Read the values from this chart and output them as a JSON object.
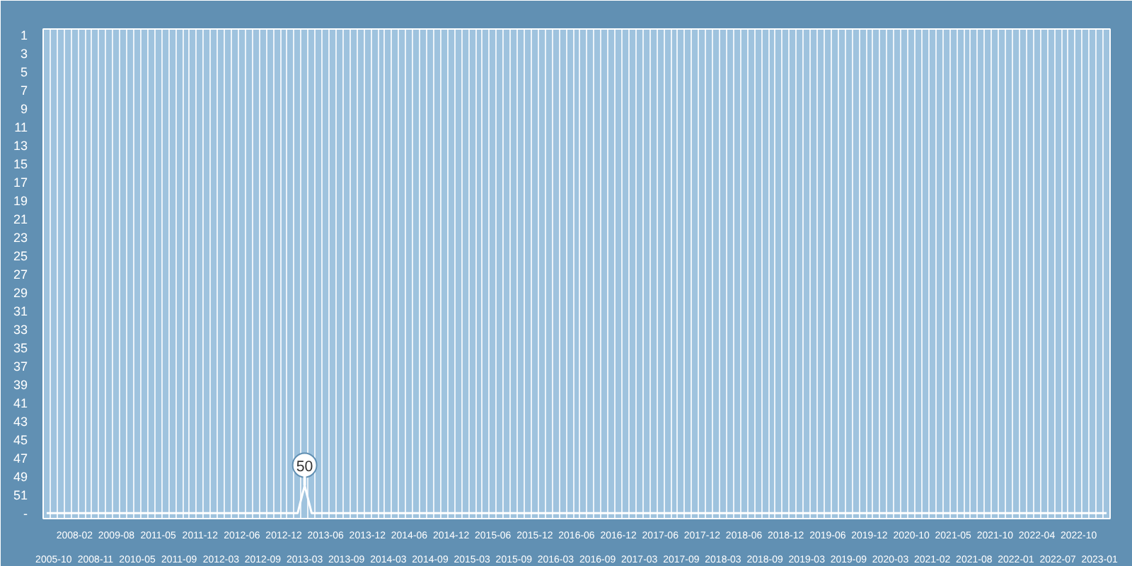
{
  "chart_data": {
    "type": "line",
    "categories": [
      null,
      "2005-10",
      null,
      null,
      "2008-02",
      null,
      null,
      "2008-11",
      null,
      null,
      "2009-08",
      null,
      null,
      "2010-05",
      null,
      null,
      "2011-05",
      null,
      null,
      "2011-09",
      null,
      null,
      "2011-12",
      null,
      null,
      "2012-03",
      null,
      null,
      "2012-06",
      null,
      null,
      "2012-09",
      null,
      null,
      "2012-12",
      null,
      null,
      "2013-03",
      null,
      null,
      "2013-06",
      null,
      null,
      "2013-09",
      null,
      null,
      "2013-12",
      null,
      null,
      "2014-03",
      null,
      null,
      "2014-06",
      null,
      null,
      "2014-09",
      null,
      null,
      "2014-12",
      null,
      null,
      "2015-03",
      null,
      null,
      "2015-06",
      null,
      null,
      "2015-09",
      null,
      null,
      "2015-12",
      null,
      null,
      "2016-03",
      null,
      null,
      "2016-06",
      null,
      null,
      "2016-09",
      null,
      null,
      "2016-12",
      null,
      null,
      "2017-03",
      null,
      null,
      "2017-06",
      null,
      null,
      "2017-09",
      null,
      null,
      "2017-12",
      null,
      null,
      "2018-03",
      null,
      null,
      "2018-06",
      null,
      null,
      "2018-09",
      null,
      null,
      "2018-12",
      null,
      null,
      "2019-03",
      null,
      null,
      "2019-06",
      null,
      null,
      "2019-09",
      null,
      null,
      "2019-12",
      null,
      null,
      "2020-03",
      null,
      null,
      "2020-10",
      null,
      null,
      "2021-02",
      null,
      null,
      "2021-05",
      null,
      null,
      "2021-08",
      null,
      null,
      "2021-10",
      null,
      null,
      "2022-01",
      null,
      null,
      "2022-04",
      null,
      null,
      "2022-07",
      null,
      null,
      "2022-10",
      null,
      null,
      "2023-01",
      null
    ],
    "series": [
      {
        "color": "#ffffff",
        "values": [
          53,
          53,
          53,
          53,
          53,
          53,
          53,
          53,
          53,
          53,
          53,
          53,
          53,
          53,
          53,
          53,
          53,
          53,
          53,
          53,
          53,
          53,
          53,
          53,
          53,
          53,
          53,
          53,
          53,
          53,
          53,
          53,
          53,
          53,
          53,
          53,
          53,
          50,
          53,
          53,
          53,
          53,
          53,
          53,
          53,
          53,
          53,
          53,
          53,
          53,
          53,
          53,
          53,
          53,
          53,
          53,
          53,
          53,
          53,
          53,
          53,
          53,
          53,
          53,
          53,
          53,
          53,
          53,
          53,
          53,
          53,
          53,
          53,
          53,
          53,
          53,
          53,
          53,
          53,
          53,
          53,
          53,
          53,
          53,
          53,
          53,
          53,
          53,
          53,
          53,
          53,
          53,
          53,
          53,
          53,
          53,
          53,
          53,
          53,
          53,
          53,
          53,
          53,
          53,
          53,
          53,
          53,
          53,
          53,
          53,
          53,
          53,
          53,
          53,
          53,
          53,
          53,
          53,
          53,
          53,
          53,
          53,
          53,
          53,
          53,
          53,
          53,
          53,
          53,
          53,
          53,
          53,
          53,
          53,
          53,
          53,
          53,
          53,
          53,
          53,
          53,
          53,
          53,
          53,
          53,
          53,
          53,
          53,
          53,
          53,
          53,
          53,
          53
        ]
      }
    ],
    "ylim": [
      53.6,
      0.4
    ],
    "yticks": [
      1,
      3,
      5,
      7,
      9,
      11,
      13,
      15,
      17,
      19,
      21,
      23,
      25,
      27,
      29,
      31,
      33,
      35,
      37,
      39,
      41,
      43,
      45,
      47,
      49,
      51,
      {
        "value": 53,
        "label": "-"
      }
    ],
    "grid": "x",
    "marker": "none",
    "annotations": [
      {
        "text": "50",
        "x": "2013-03",
        "y": 50
      }
    ]
  }
}
